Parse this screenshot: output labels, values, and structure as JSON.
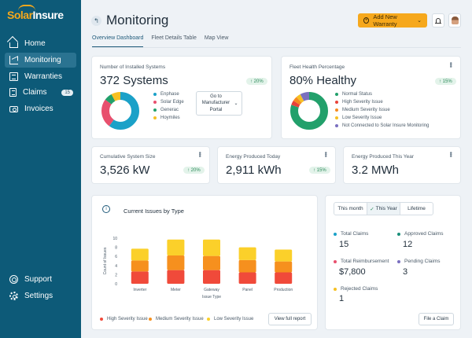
{
  "app": {
    "logo": {
      "part1": "Solar",
      "part2": "Insure"
    }
  },
  "sidebar": {
    "items": [
      {
        "label": "Home",
        "icon": "home-icon"
      },
      {
        "label": "Monitoring",
        "icon": "chart-icon",
        "active": true
      },
      {
        "label": "Warranties",
        "icon": "document-icon"
      },
      {
        "label": "Claims",
        "icon": "claims-icon",
        "badge": "15"
      },
      {
        "label": "Invoices",
        "icon": "money-icon"
      }
    ],
    "bottom": [
      {
        "label": "Support",
        "icon": "support-icon"
      },
      {
        "label": "Settings",
        "icon": "gear-icon"
      }
    ]
  },
  "header": {
    "back_glyph": "↰",
    "title": "Monitoring",
    "add_button": "Add New Warranty"
  },
  "tabs": [
    {
      "label": "Overview Dashboard",
      "active": true
    },
    {
      "label": "Fleet Details Table"
    },
    {
      "label": "Map View"
    }
  ],
  "installed": {
    "label": "Number of Installed Systems",
    "value": "372 Systems",
    "delta": "↑ 20%",
    "legend": [
      "Enphase",
      "Solar Edge",
      "Generac",
      "Hoymiles"
    ],
    "colors": [
      "#1ba1c8",
      "#e8506e",
      "#22a06b",
      "#f6c023"
    ],
    "shares": [
      0.6,
      0.25,
      0.07,
      0.08
    ],
    "manufacturer_button": "Go to Manufacturer Portal"
  },
  "health": {
    "label": "Fleet Health Percentage",
    "value": "80% Healthy",
    "delta": "↑ 15%",
    "legend": [
      "Normal Status",
      "High Severity Issue",
      "Medium Severity Issue",
      "Low Severity Issue",
      "Not Connected to Solar Insure Monitoring"
    ],
    "colors": [
      "#22a06b",
      "#e8423a",
      "#f68b1f",
      "#f6c023",
      "#7a6fc0"
    ],
    "shares": [
      0.8,
      0.04,
      0.04,
      0.04,
      0.08
    ]
  },
  "kpis": [
    {
      "label": "Cumulative System Size",
      "value": "3,526 kW",
      "delta": "↑ 20%"
    },
    {
      "label": "Energy Produced Today",
      "value": "2,911 kWh",
      "delta": "↑ 15%"
    },
    {
      "label": "Energy Produced This Year",
      "value": "3.2 MWh"
    }
  ],
  "issues": {
    "title": "Current Issues by Type",
    "legend": [
      "High Severity Issue",
      "Medium Severity Issue",
      "Low Severity Issue"
    ],
    "button": "View full report"
  },
  "chart_data": {
    "type": "bar",
    "stacked": true,
    "categories": [
      "Inverter",
      "Meter",
      "Gateway",
      "Panel",
      "Production"
    ],
    "series": [
      {
        "name": "High Severity Issue",
        "color": "#f04a3a",
        "values": [
          2.7,
          3,
          3,
          2.5,
          2.5
        ]
      },
      {
        "name": "Medium Severity Issue",
        "color": "#f6901e",
        "values": [
          2.4,
          3.2,
          3.1,
          2.7,
          2.4
        ]
      },
      {
        "name": "Low Severity Issue",
        "color": "#fbd02a",
        "values": [
          2.6,
          3.5,
          3.6,
          2.8,
          2.6
        ]
      }
    ],
    "xlabel": "Issue Type",
    "ylabel": "Count of Issues",
    "yticks": [
      0,
      2,
      4,
      6,
      8,
      10
    ],
    "ylim": [
      0,
      10
    ]
  },
  "claims": {
    "periods": [
      "This month",
      "This Year",
      "Lifetime"
    ],
    "active_period": "This Year",
    "stats": [
      {
        "label": "Total Claims",
        "value": "15",
        "color": "#1ba1c8"
      },
      {
        "label": "Approved Claims",
        "value": "12",
        "color": "#1a8f7a"
      },
      {
        "label": "Total Reimbursement",
        "value": "$7,800",
        "color": "#e8506e"
      },
      {
        "label": "Pending Claims",
        "value": "3",
        "color": "#7a6fc0"
      },
      {
        "label": "Rejected Claims",
        "value": "1",
        "color": "#f6c023"
      }
    ],
    "file_button": "File a Claim"
  }
}
